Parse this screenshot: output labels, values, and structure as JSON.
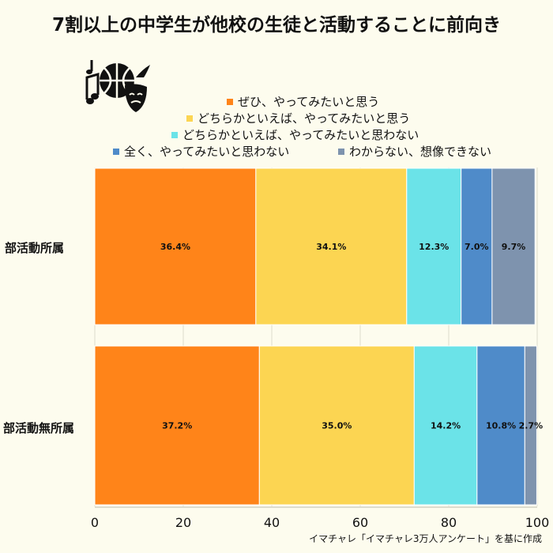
{
  "chart_data": {
    "type": "bar",
    "orientation": "horizontal",
    "stacked": true,
    "title": "7割以上の中学生が他校の生徒と活動することに前向き",
    "categories": [
      "部活動所属",
      "部活動無所属"
    ],
    "series": [
      {
        "name": "ぜひ、やってみたいと思う",
        "color": "#ff8419",
        "values": [
          36.4,
          37.2
        ],
        "labels": [
          "36.4%",
          "37.2%"
        ]
      },
      {
        "name": "どちらかといえば、やってみたいと思う",
        "color": "#fcd552",
        "values": [
          34.1,
          35.0
        ],
        "labels": [
          "34.1%",
          "35.0%"
        ]
      },
      {
        "name": "どちらかといえば、やってみたいと思わない",
        "color": "#6be3e8",
        "values": [
          12.3,
          14.2
        ],
        "labels": [
          "12.3%",
          "14.2%"
        ]
      },
      {
        "name": "全く、やってみたいと思わない",
        "color": "#4f8bc9",
        "values": [
          7.0,
          10.8
        ],
        "labels": [
          "7.0%",
          "10.8%"
        ]
      },
      {
        "name": "わからない、想像できない",
        "color": "#7e93ae",
        "values": [
          9.7,
          2.7
        ],
        "labels": [
          "9.7%",
          "2.7%"
        ]
      }
    ],
    "xlim": [
      0,
      100
    ],
    "xticks": [
      "0",
      "20",
      "40",
      "60",
      "80",
      "100"
    ],
    "grid": true,
    "legend": "top-right"
  },
  "source_note": "イマチャレ「イマチャレ3万人アンケート」を基に作成",
  "icon": "music-basketball-theater-icon"
}
